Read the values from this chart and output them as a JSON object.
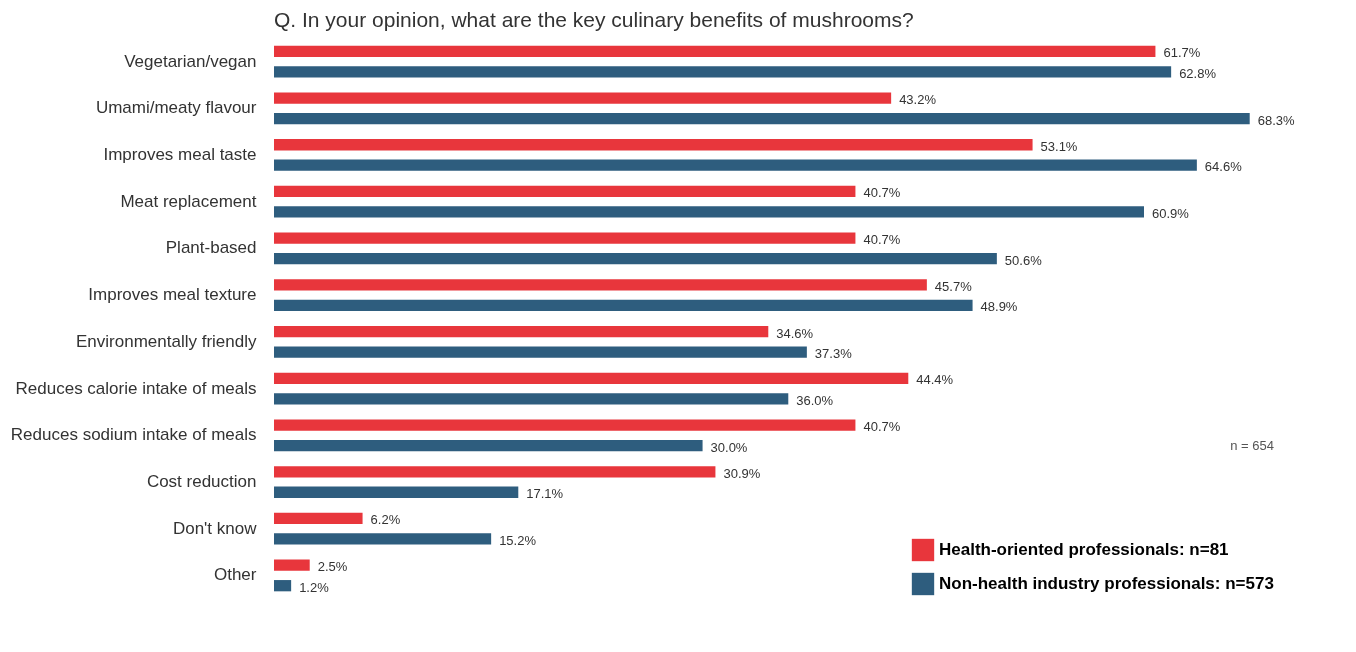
{
  "chart_data": {
    "type": "bar",
    "orientation": "horizontal",
    "title": "Q. In your opinion, what are the key culinary benefits of mushrooms?",
    "categories": [
      "Vegetarian/vegan",
      "Umami/meaty flavour",
      "Improves meal taste",
      "Meat replacement",
      "Plant-based",
      "Improves meal texture",
      "Environmentally friendly",
      "Reduces calorie intake of meals",
      "Reduces sodium intake of meals",
      "Cost reduction",
      "Don't know",
      "Other"
    ],
    "series": [
      {
        "name": "Health-oriented professionals: n=81",
        "color": "#e8363c",
        "values": [
          61.7,
          43.2,
          53.1,
          40.7,
          40.7,
          45.7,
          34.6,
          44.4,
          40.7,
          30.9,
          6.2,
          2.5
        ],
        "value_labels": [
          "61.7%",
          "43.2%",
          "53.1%",
          "40.7%",
          "40.7%",
          "45.7%",
          "34.6%",
          "44.4%",
          "40.7%",
          "30.9%",
          "6.2%",
          "2.5%"
        ]
      },
      {
        "name": "Non-health industry professionals: n=573",
        "color": "#2e5d7e",
        "values": [
          62.8,
          68.3,
          64.6,
          60.9,
          50.6,
          48.9,
          37.3,
          36.0,
          30.0,
          17.1,
          15.2,
          1.2
        ],
        "value_labels": [
          "62.8%",
          "68.3%",
          "64.6%",
          "60.9%",
          "50.6%",
          "48.9%",
          "37.3%",
          "36.0%",
          "30.0%",
          "17.1%",
          "15.2%",
          "1.2%"
        ]
      }
    ],
    "annotations": [
      "n = 654"
    ],
    "legend": "bottom right"
  }
}
